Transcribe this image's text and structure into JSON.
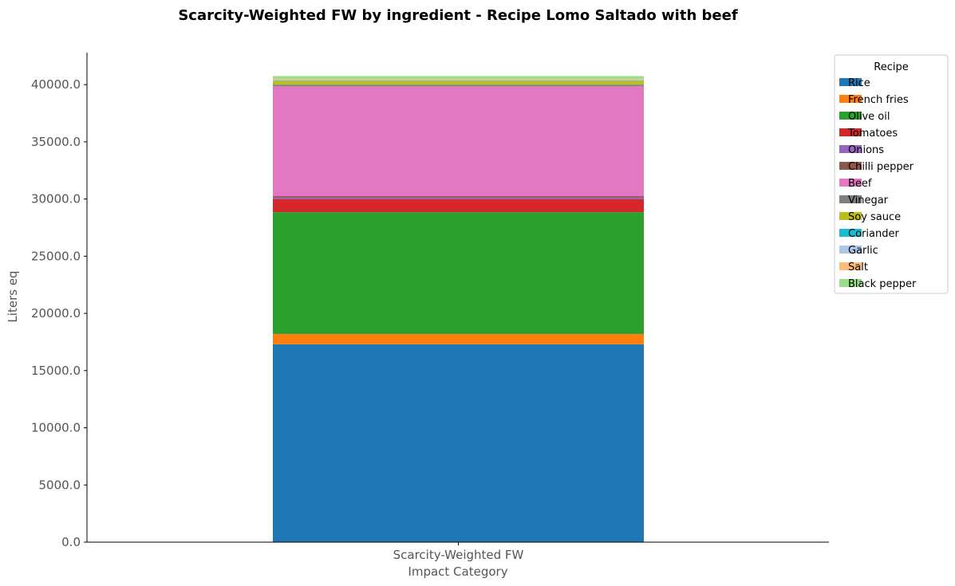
{
  "chart_data": {
    "type": "bar",
    "stacked": true,
    "title": "Scarcity-Weighted FW by ingredient - Recipe Lomo Saltado with beef",
    "categories": [
      "Scarcity-Weighted FW"
    ],
    "xlabel": "Impact Category",
    "ylabel": "Liters eq",
    "ylim": [
      0,
      42800
    ],
    "yticks": [
      0,
      5000,
      10000,
      15000,
      20000,
      25000,
      30000,
      35000,
      40000
    ],
    "ytick_labels": [
      "0.0",
      "5000.0",
      "10000.0",
      "15000.0",
      "20000.0",
      "25000.0",
      "30000.0",
      "35000.0",
      "40000.0"
    ],
    "grid": false,
    "legend_title": "Recipe",
    "legend_position": "upper right, outside plot",
    "series": [
      {
        "name": "Rice",
        "values": [
          17300
        ],
        "color": "#1f77b4"
      },
      {
        "name": "French fries",
        "values": [
          900
        ],
        "color": "#ff7f0e"
      },
      {
        "name": "Olive oil",
        "values": [
          10650
        ],
        "color": "#2ca02c"
      },
      {
        "name": "Tomatoes",
        "values": [
          1150
        ],
        "color": "#d62728"
      },
      {
        "name": "Onions",
        "values": [
          150
        ],
        "color": "#9467bd"
      },
      {
        "name": "Chilli pepper",
        "values": [
          100
        ],
        "color": "#8c564b"
      },
      {
        "name": "Beef",
        "values": [
          9600
        ],
        "color": "#e377c2"
      },
      {
        "name": "Vinegar",
        "values": [
          150
        ],
        "color": "#7f7f7f"
      },
      {
        "name": "Soy sauce",
        "values": [
          350
        ],
        "color": "#bcbd22"
      },
      {
        "name": "Coriander",
        "values": [
          30
        ],
        "color": "#17becf"
      },
      {
        "name": "Garlic",
        "values": [
          60
        ],
        "color": "#aec7e8"
      },
      {
        "name": "Salt",
        "values": [
          70
        ],
        "color": "#ffbb78"
      },
      {
        "name": "Black pepper",
        "values": [
          240
        ],
        "color": "#98df8a"
      }
    ]
  }
}
